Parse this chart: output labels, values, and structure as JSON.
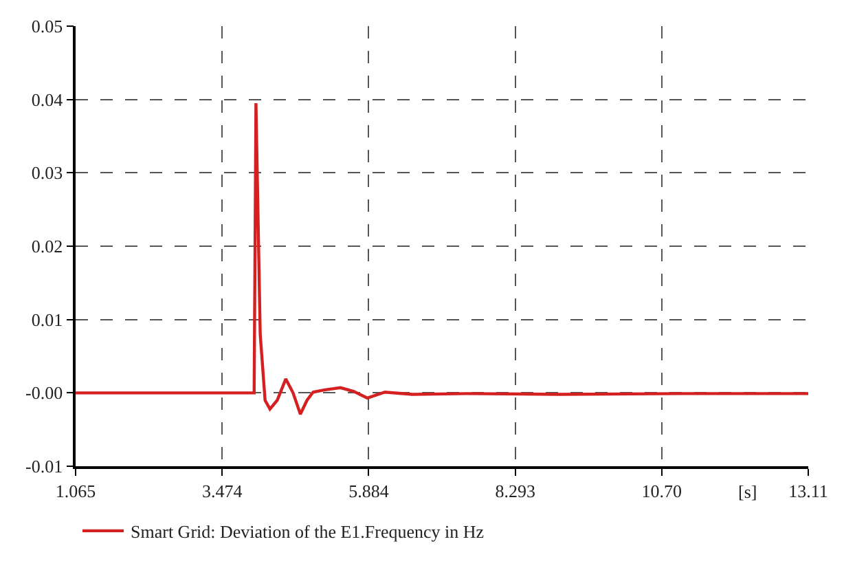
{
  "chart_data": {
    "type": "line",
    "xlabel": "[s]",
    "x": [
      1.065,
      3.9,
      4.0,
      4.03,
      4.1,
      4.18,
      4.26,
      4.38,
      4.52,
      4.64,
      4.76,
      4.87,
      4.97,
      5.15,
      5.42,
      5.64,
      5.86,
      6.15,
      6.6,
      7.5,
      9.0,
      11.0,
      13.11
    ],
    "series": [
      {
        "name": "Smart Grid: Deviation of the E1.Frequency in Hz",
        "color": "#d42020",
        "values": [
          0.0,
          0.0,
          0.0,
          0.0395,
          0.008,
          -0.001,
          -0.0022,
          -0.001,
          0.0019,
          0.0,
          -0.0029,
          -0.001,
          0.0001,
          0.0004,
          0.0007,
          0.0002,
          -0.0007,
          0.0001,
          -0.0002,
          -0.0001,
          -0.0002,
          -0.0001,
          -0.0001
        ]
      }
    ],
    "xlim": [
      1.065,
      13.11
    ],
    "xticks": [
      1.065,
      3.474,
      5.884,
      8.293,
      {
        "value": 10.7,
        "label": "10.70"
      },
      13.11
    ],
    "ylim": [
      -0.01,
      0.05
    ],
    "yticks": [
      -0.01,
      {
        "value": 0,
        "label": "-0.00"
      },
      0.01,
      0.02,
      0.03,
      0.04,
      0.05
    ],
    "grid": true,
    "legend": "bottom left",
    "marker": "none",
    "line_style": "solid"
  }
}
